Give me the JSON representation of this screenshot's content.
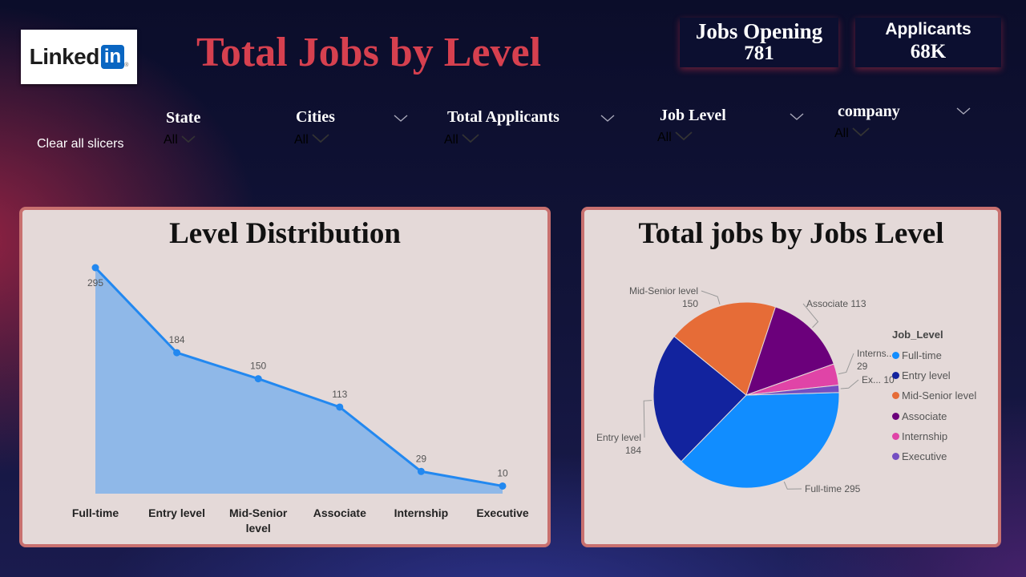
{
  "logo": {
    "word": "Linked",
    "in": "in",
    "tm": "®"
  },
  "title": "Total Jobs by Level",
  "kpis": {
    "jobs_opening": {
      "label": "Jobs Opening",
      "value": "781"
    },
    "applicants": {
      "label": "Applicants",
      "value": "68K"
    }
  },
  "clear_slicers": "Clear all slicers",
  "slicers": {
    "state": {
      "label": "State",
      "value": "All"
    },
    "cities": {
      "label": "Cities",
      "value": "All"
    },
    "total_applicants": {
      "label": "Total Applicants",
      "value": "All"
    },
    "job_level": {
      "label": "Job Level",
      "value": "All"
    },
    "company": {
      "label": "company",
      "value": "All"
    }
  },
  "colors": {
    "accent_title": "#d6404f",
    "area_fill": "#8fb8e8",
    "line": "#2288f0",
    "panel_bg": "#e4d9d8",
    "panel_border": "#c8706f"
  },
  "chart_data": [
    {
      "type": "area",
      "title": "Level Distribution",
      "categories": [
        "Full-time",
        "Entry level",
        "Mid-Senior level",
        "Associate",
        "Internship",
        "Executive"
      ],
      "category_lines": [
        [
          "Full-time"
        ],
        [
          "Entry level"
        ],
        [
          "Mid-Senior",
          "level"
        ],
        [
          "Associate"
        ],
        [
          "Internship"
        ],
        [
          "Executive"
        ]
      ],
      "values": [
        295,
        184,
        150,
        113,
        29,
        10
      ],
      "data_labels": [
        "295",
        "184",
        "150",
        "113",
        "29",
        "10"
      ],
      "ylim": [
        0,
        295
      ],
      "grid": false
    },
    {
      "type": "pie",
      "title": "Total jobs by Jobs Level",
      "legend_title": "Job_Level",
      "legend_position": "right",
      "slices": [
        {
          "label": "Full-time",
          "value": 295,
          "color": "#118dff",
          "data_label": [
            "Full-time 295"
          ]
        },
        {
          "label": "Entry level",
          "value": 184,
          "color": "#12239e",
          "data_label": [
            "Entry level",
            "184"
          ]
        },
        {
          "label": "Mid-Senior level",
          "value": 150,
          "color": "#e66c37",
          "data_label": [
            "Mid-Senior level",
            "150"
          ]
        },
        {
          "label": "Associate",
          "value": 113,
          "color": "#6b007b",
          "data_label": [
            "Associate 113"
          ]
        },
        {
          "label": "Internship",
          "value": 29,
          "color": "#e044a7",
          "data_label": [
            "Interns...",
            "29"
          ]
        },
        {
          "label": "Executive",
          "value": 10,
          "color": "#744ec2",
          "data_label": [
            "Ex... 10"
          ]
        }
      ]
    }
  ]
}
